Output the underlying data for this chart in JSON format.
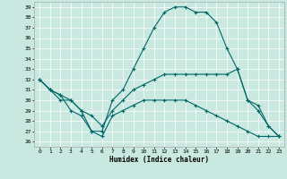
{
  "xlabel": "Humidex (Indice chaleur)",
  "xlim": [
    -0.5,
    23.5
  ],
  "ylim": [
    25.5,
    39.5
  ],
  "yticks": [
    26,
    27,
    28,
    29,
    30,
    31,
    32,
    33,
    34,
    35,
    36,
    37,
    38,
    39
  ],
  "xticks": [
    0,
    1,
    2,
    3,
    4,
    5,
    6,
    7,
    8,
    9,
    10,
    11,
    12,
    13,
    14,
    15,
    16,
    17,
    18,
    19,
    20,
    21,
    22,
    23
  ],
  "bg_color": "#c8e8e0",
  "grid_color": "#ffffff",
  "line_color": "#006868",
  "line1_x": [
    0,
    1,
    2,
    3,
    4,
    5,
    6,
    7,
    8,
    9,
    10,
    11,
    12,
    13,
    14,
    15,
    16,
    17,
    18,
    19,
    20,
    21,
    22,
    23
  ],
  "line1_y": [
    32,
    31,
    30,
    30,
    29,
    27,
    27,
    30,
    31,
    33,
    35,
    37,
    38.5,
    39,
    39,
    38.5,
    38.5,
    37.5,
    35,
    33,
    30,
    29,
    27.5,
    26.5
  ],
  "line2_x": [
    0,
    1,
    2,
    3,
    4,
    5,
    6,
    7,
    8,
    9,
    10,
    11,
    12,
    13,
    14,
    15,
    16,
    17,
    18,
    19,
    20,
    21,
    22,
    23
  ],
  "line2_y": [
    32,
    31,
    30.5,
    30,
    29,
    28.5,
    27.5,
    29,
    30,
    31,
    31.5,
    32,
    32.5,
    32.5,
    32.5,
    32.5,
    32.5,
    32.5,
    32.5,
    33,
    30,
    29.5,
    27.5,
    26.5
  ],
  "line3_x": [
    0,
    1,
    2,
    3,
    4,
    5,
    6,
    7,
    8,
    9,
    10,
    11,
    12,
    13,
    14,
    15,
    16,
    17,
    18,
    19,
    20,
    21,
    22,
    23
  ],
  "line3_y": [
    32,
    31,
    30.5,
    29,
    28.5,
    27,
    26.5,
    28.5,
    29,
    29.5,
    30,
    30,
    30,
    30,
    30,
    29.5,
    29,
    28.5,
    28,
    27.5,
    27,
    26.5,
    26.5,
    26.5
  ]
}
